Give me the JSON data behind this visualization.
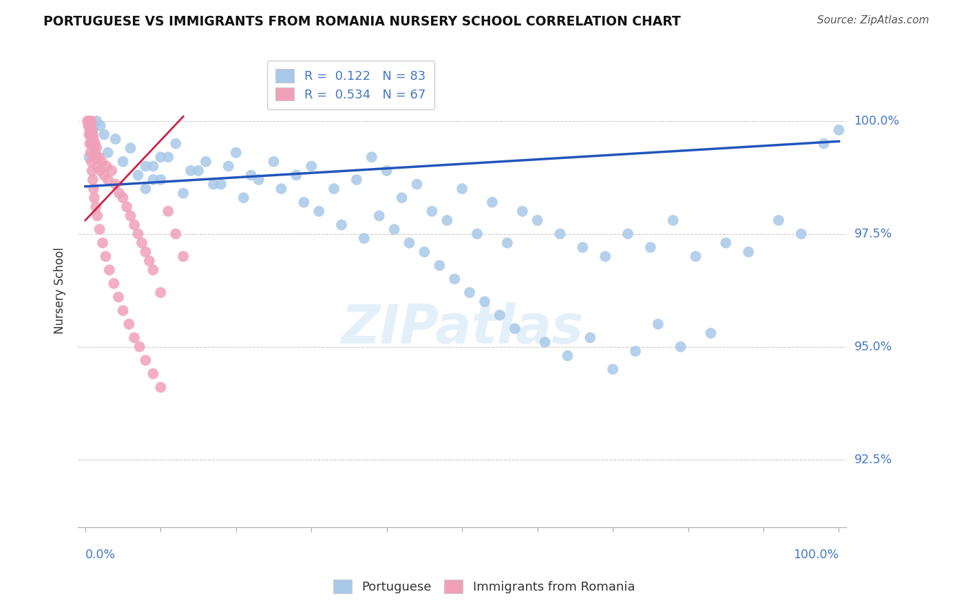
{
  "title": "PORTUGUESE VS IMMIGRANTS FROM ROMANIA NURSERY SCHOOL CORRELATION CHART",
  "source": "Source: ZipAtlas.com",
  "ylabel": "Nursery School",
  "ytick_values": [
    92.5,
    95.0,
    97.5,
    100.0
  ],
  "ylim": [
    91.0,
    101.5
  ],
  "xlim": [
    -0.01,
    1.01
  ],
  "blue_color": "#a8c8e8",
  "pink_color": "#f0a0b8",
  "blue_line_color": "#2255bb",
  "pink_line_color": "#cc2244",
  "legend_blue_r_val": "0.122",
  "legend_blue_n_val": "83",
  "legend_pink_r_val": "0.534",
  "legend_pink_n_val": "67",
  "watermark": "ZIPatlas",
  "blue_x": [
    0.005,
    0.008,
    0.01,
    0.015,
    0.02,
    0.025,
    0.03,
    0.04,
    0.05,
    0.06,
    0.07,
    0.08,
    0.09,
    0.1,
    0.12,
    0.14,
    0.16,
    0.18,
    0.2,
    0.22,
    0.08,
    0.09,
    0.1,
    0.11,
    0.13,
    0.15,
    0.17,
    0.19,
    0.21,
    0.23,
    0.25,
    0.28,
    0.3,
    0.33,
    0.36,
    0.38,
    0.4,
    0.42,
    0.44,
    0.46,
    0.48,
    0.5,
    0.52,
    0.54,
    0.56,
    0.58,
    0.6,
    0.63,
    0.66,
    0.69,
    0.72,
    0.75,
    0.78,
    0.81,
    0.85,
    0.88,
    0.92,
    0.95,
    0.98,
    1.0,
    0.26,
    0.29,
    0.31,
    0.34,
    0.37,
    0.39,
    0.41,
    0.43,
    0.45,
    0.47,
    0.49,
    0.51,
    0.53,
    0.55,
    0.57,
    0.61,
    0.64,
    0.67,
    0.7,
    0.73,
    0.76,
    0.79,
    0.83
  ],
  "blue_y": [
    99.2,
    99.5,
    99.8,
    100.0,
    99.9,
    99.7,
    99.3,
    99.6,
    99.1,
    99.4,
    98.8,
    99.0,
    98.7,
    99.2,
    99.5,
    98.9,
    99.1,
    98.6,
    99.3,
    98.8,
    98.5,
    99.0,
    98.7,
    99.2,
    98.4,
    98.9,
    98.6,
    99.0,
    98.3,
    98.7,
    99.1,
    98.8,
    99.0,
    98.5,
    98.7,
    99.2,
    98.9,
    98.3,
    98.6,
    98.0,
    97.8,
    98.5,
    97.5,
    98.2,
    97.3,
    98.0,
    97.8,
    97.5,
    97.2,
    97.0,
    97.5,
    97.2,
    97.8,
    97.0,
    97.3,
    97.1,
    97.8,
    97.5,
    99.5,
    99.8,
    98.5,
    98.2,
    98.0,
    97.7,
    97.4,
    97.9,
    97.6,
    97.3,
    97.1,
    96.8,
    96.5,
    96.2,
    96.0,
    95.7,
    95.4,
    95.1,
    94.8,
    95.2,
    94.5,
    94.9,
    95.5,
    95.0,
    95.3
  ],
  "pink_x": [
    0.003,
    0.004,
    0.005,
    0.005,
    0.006,
    0.006,
    0.007,
    0.007,
    0.008,
    0.008,
    0.009,
    0.009,
    0.01,
    0.01,
    0.011,
    0.011,
    0.012,
    0.013,
    0.014,
    0.015,
    0.016,
    0.018,
    0.02,
    0.022,
    0.025,
    0.028,
    0.03,
    0.035,
    0.04,
    0.045,
    0.05,
    0.055,
    0.06,
    0.065,
    0.07,
    0.075,
    0.08,
    0.085,
    0.09,
    0.1,
    0.004,
    0.005,
    0.006,
    0.007,
    0.008,
    0.009,
    0.01,
    0.011,
    0.012,
    0.014,
    0.016,
    0.019,
    0.023,
    0.027,
    0.032,
    0.038,
    0.044,
    0.05,
    0.058,
    0.065,
    0.072,
    0.08,
    0.09,
    0.1,
    0.11,
    0.12,
    0.13
  ],
  "pink_y": [
    100.0,
    100.0,
    99.9,
    100.0,
    99.8,
    100.0,
    99.7,
    99.9,
    99.8,
    100.0,
    99.6,
    99.8,
    99.5,
    99.7,
    99.4,
    99.6,
    99.3,
    99.5,
    99.2,
    99.4,
    99.0,
    99.2,
    98.9,
    99.1,
    98.8,
    99.0,
    98.7,
    98.9,
    98.6,
    98.4,
    98.3,
    98.1,
    97.9,
    97.7,
    97.5,
    97.3,
    97.1,
    96.9,
    96.7,
    96.2,
    99.9,
    99.7,
    99.5,
    99.3,
    99.1,
    98.9,
    98.7,
    98.5,
    98.3,
    98.1,
    97.9,
    97.6,
    97.3,
    97.0,
    96.7,
    96.4,
    96.1,
    95.8,
    95.5,
    95.2,
    95.0,
    94.7,
    94.4,
    94.1,
    98.0,
    97.5,
    97.0
  ],
  "blue_trend_x": [
    0.0,
    1.0
  ],
  "blue_trend_y": [
    98.55,
    99.55
  ],
  "pink_trend_x": [
    0.0,
    0.13
  ],
  "pink_trend_y": [
    97.8,
    100.1
  ]
}
